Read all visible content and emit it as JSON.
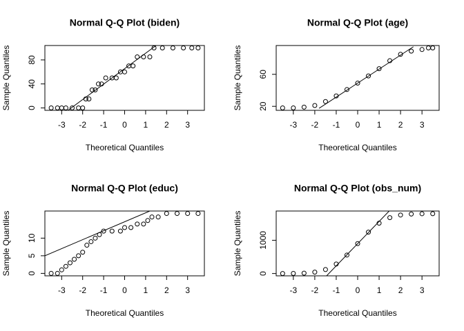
{
  "chart_data": [
    {
      "type": "qq",
      "title": "Normal Q-Q Plot (biden)",
      "xlabel": "Theoretical Quantiles",
      "ylabel": "Sample Quantiles",
      "color": "#000000",
      "x": [
        -3.5,
        -3.2,
        -3.0,
        -2.8,
        -2.5,
        -2.2,
        -2.0,
        -1.85,
        -1.7,
        -1.55,
        -1.4,
        -1.25,
        -1.1,
        -0.9,
        -0.6,
        -0.4,
        -0.2,
        0.0,
        0.2,
        0.4,
        0.6,
        0.9,
        1.2,
        1.4,
        1.8,
        2.3,
        2.8,
        3.2,
        3.5
      ],
      "values": [
        0,
        0,
        0,
        0,
        0,
        0,
        0,
        15,
        15,
        30,
        30,
        40,
        40,
        50,
        50,
        50,
        60,
        60,
        70,
        70,
        85,
        85,
        85,
        100,
        100,
        100,
        100,
        100,
        100
      ],
      "qq_line": {
        "x": [
          -2.7,
          1.5
        ],
        "y": [
          -4,
          104
        ]
      },
      "xlim": [
        -3.8,
        3.8
      ],
      "ylim": [
        -4,
        104
      ],
      "xticks": [
        -3,
        -2,
        -1,
        0,
        1,
        2,
        3
      ],
      "yticks": [
        0,
        40,
        80
      ]
    },
    {
      "type": "qq",
      "title": "Normal Q-Q Plot (age)",
      "xlabel": "Theoretical Quantiles",
      "ylabel": "Sample Quantiles",
      "color": "#000000",
      "x": [
        -3.5,
        -3.0,
        -2.5,
        -2.0,
        -1.5,
        -1.0,
        -0.5,
        0.0,
        0.5,
        1.0,
        1.5,
        2.0,
        2.5,
        3.0,
        3.3,
        3.5
      ],
      "values": [
        18,
        18,
        19,
        21,
        26,
        33,
        41,
        49,
        58,
        67,
        77,
        85,
        89,
        91,
        93,
        93
      ],
      "qq_line": {
        "x": [
          -1.8,
          2.6
        ],
        "y": [
          17.5,
          94.5
        ]
      },
      "xlim": [
        -3.8,
        3.8
      ],
      "ylim": [
        15,
        96
      ],
      "xticks": [
        -3,
        -2,
        -1,
        0,
        1,
        2,
        3
      ],
      "yticks": [
        20,
        60
      ]
    },
    {
      "type": "qq",
      "title": "Normal Q-Q Plot (educ)",
      "xlabel": "Theoretical Quantiles",
      "ylabel": "Sample Quantiles",
      "color": "#000000",
      "x": [
        -3.5,
        -3.2,
        -3.0,
        -2.8,
        -2.6,
        -2.4,
        -2.2,
        -2.0,
        -1.8,
        -1.6,
        -1.4,
        -1.2,
        -1.0,
        -0.6,
        -0.2,
        0.0,
        0.3,
        0.6,
        0.9,
        1.1,
        1.3,
        1.6,
        2.0,
        2.5,
        3.0,
        3.5
      ],
      "values": [
        0,
        0,
        1,
        2,
        3,
        4,
        5,
        6,
        8,
        9,
        10,
        11,
        12,
        12,
        12,
        13,
        13,
        14,
        14,
        15,
        16,
        16,
        17,
        17,
        17,
        17
      ],
      "qq_line": {
        "x": [
          -3.8,
          1.2
        ],
        "y": [
          5,
          17.7
        ]
      },
      "xlim": [
        -3.8,
        3.8
      ],
      "ylim": [
        -0.7,
        17.7
      ],
      "xticks": [
        -3,
        -2,
        -1,
        0,
        1,
        2,
        3
      ],
      "yticks": [
        0,
        5,
        10
      ]
    },
    {
      "type": "qq",
      "title": "Normal Q-Q Plot (obs_num)",
      "xlabel": "Theoretical Quantiles",
      "ylabel": "Sample Quantiles",
      "color": "#000000",
      "x": [
        -3.5,
        -3.0,
        -2.5,
        -2.0,
        -1.5,
        -1.0,
        -0.5,
        0.0,
        0.5,
        1.0,
        1.5,
        2.0,
        2.5,
        3.0,
        3.5
      ],
      "values": [
        0,
        2,
        11,
        41,
        120,
        286,
        556,
        900,
        1244,
        1514,
        1680,
        1759,
        1789,
        1798,
        1800
      ],
      "qq_line": {
        "x": [
          -1.45,
          1.47
        ],
        "y": [
          -70,
          1880
        ]
      },
      "xlim": [
        -3.8,
        3.8
      ],
      "ylim": [
        -70,
        1880
      ],
      "xticks": [
        -3,
        -2,
        -1,
        0,
        1,
        2,
        3
      ],
      "yticks": [
        0,
        1000
      ]
    }
  ]
}
